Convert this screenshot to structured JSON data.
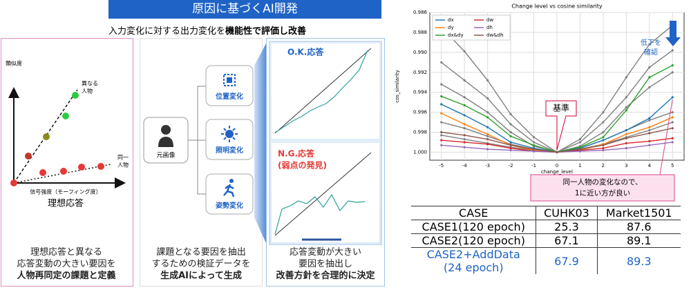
{
  "header": {
    "title": "原因に基づくAI開発",
    "subtitle": "入力変化に対する出力変化を",
    "subtitle_bold": "機能性で評価し改善"
  },
  "left_panel": {
    "y_label": "類似度",
    "diff_person": [
      "異なる",
      "人物"
    ],
    "same_person": [
      "同一",
      "人物"
    ],
    "x_label": "信号強度（モーフィング度）",
    "caption": "理想応答",
    "text": [
      "理想応答と異なる",
      "応答変動の大きい要因を"
    ],
    "text_bold": "人物再同定の課題と定義"
  },
  "middle_panel": {
    "source": "元画像",
    "changes": [
      "位置変化",
      "照明変化",
      "姿勢変化"
    ],
    "text": [
      "課題となる要因を抽出",
      "するための検証データを"
    ],
    "text_bold": "生成AIによって生成"
  },
  "right_panel": {
    "ok": "O.K.応答",
    "ng": [
      "N.G.応答",
      "(弱点の発見)"
    ],
    "text": [
      "応答変動が大きい",
      "要因を抽出し"
    ],
    "text_bold": "改善方針を合理的に決定"
  },
  "chart_data": {
    "type": "line",
    "title": "Change level vs cosine similarity",
    "x_label": "change_level",
    "y_label": "cos_similarity",
    "x": [
      -5,
      -4,
      -3,
      -2,
      -1,
      0,
      1,
      2,
      3,
      4,
      5
    ],
    "xlim": [
      -5.5,
      5.5
    ],
    "xticks": [
      -5,
      -4,
      -3,
      -2,
      -1,
      0,
      1,
      2,
      3,
      4,
      5
    ],
    "ylim": [
      1.0008,
      0.986
    ],
    "yticks": [
      0.986,
      0.988,
      {
        "value": 0.99,
        "label": "0.990"
      },
      0.992,
      0.994,
      0.996,
      0.998,
      {
        "value": 1,
        "label": "1.000"
      }
    ],
    "grid": true,
    "legend": "upper left",
    "series": [
      {
        "color": "#7f7f7f",
        "values": [
          0.9875,
          0.9899,
          0.9928,
          0.9962,
          0.9985,
          1,
          0.9987,
          0.996,
          0.9925,
          0.9892,
          0.9873
        ]
      },
      {
        "color": "#7f7f7f",
        "values": [
          0.991,
          0.9928,
          0.9946,
          0.9972,
          0.999,
          1,
          0.999,
          0.997,
          0.9945,
          0.9915,
          0.9898
        ]
      },
      {
        "color": "#7f7f7f",
        "values": [
          0.9932,
          0.9945,
          0.996,
          0.998,
          0.9994,
          1,
          0.9994,
          0.998,
          0.9955,
          0.9935,
          0.992
        ]
      },
      {
        "color": "#7f7f7f",
        "values": [
          0.997,
          0.9976,
          0.9984,
          0.9992,
          0.9997,
          1,
          0.9996,
          0.9988,
          0.9978,
          0.9968,
          0.996
        ]
      },
      {
        "color": "#7f7f7f",
        "values": [
          0.9983,
          0.9987,
          0.9991,
          0.9995,
          0.9998,
          1,
          0.9997,
          0.9992,
          0.9985,
          0.9978,
          0.997
        ]
      },
      {
        "name": "dx",
        "color": "#1f77b4",
        "values": [
          0.9952,
          0.9963,
          0.9975,
          0.999,
          0.9996,
          1,
          0.9996,
          0.9988,
          0.9978,
          0.9966,
          0.9945
        ]
      },
      {
        "name": "dy",
        "color": "#ff7f0e",
        "values": [
          0.9961,
          0.9972,
          0.9982,
          0.9993,
          0.9998,
          1,
          0.9998,
          0.9992,
          0.9982,
          0.9975,
          0.9965
        ]
      },
      {
        "name": "dx&dy",
        "color": "#2ca02c",
        "values": [
          0.9944,
          0.9953,
          0.9965,
          0.9984,
          0.9993,
          1,
          0.9995,
          0.9985,
          0.9958,
          0.9925,
          0.9913
        ]
      },
      {
        "name": "dw",
        "color": "#d62728",
        "values": [
          0.9988,
          0.999,
          0.9992,
          0.9996,
          0.9999,
          1,
          0.9998,
          0.9996,
          0.9991,
          0.9989,
          0.9986
        ]
      },
      {
        "name": "dh",
        "color": "#9467bd",
        "values": [
          0.9993,
          0.9995,
          0.9997,
          0.9998,
          0.9999,
          1,
          0.9999,
          0.9998,
          0.9996,
          0.9993,
          0.999
        ]
      },
      {
        "name": "dw&dh",
        "color": "#8c564b",
        "values": [
          0.998,
          0.9983,
          0.9987,
          0.9993,
          0.9997,
          1,
          0.9997,
          0.9993,
          0.9986,
          0.9981,
          0.9976
        ]
      }
    ],
    "annotation_drop": [
      "低下を",
      "確認"
    ],
    "annotation_base": "基準",
    "annotation_note": [
      "同一人物の変化なので、",
      "1に近い方が良い"
    ]
  },
  "table": {
    "header": [
      "CASE",
      "CUHK03",
      "Market1501"
    ],
    "rows": [
      [
        [
          "CASE1(120 epoch)"
        ],
        25.3,
        87.6
      ],
      [
        [
          "CASE2(120 epoch)"
        ],
        67.1,
        89.1
      ],
      [
        [
          "CASE2+AddData",
          "(24 epoch)"
        ],
        67.9,
        89.3
      ]
    ]
  }
}
